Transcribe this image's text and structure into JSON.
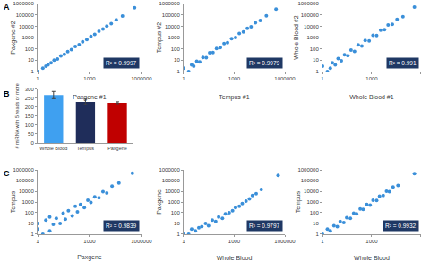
{
  "panel_labels": [
    "A",
    "B",
    "C"
  ],
  "chart_data": [
    {
      "type": "scatter",
      "xlabel": "Paxgene #1",
      "ylabel": "Paxgene #2",
      "color": "#3a8fd9",
      "marker": "circle",
      "log": true,
      "grid": false,
      "xlim": [
        1,
        1000000
      ],
      "ylim": [
        1,
        1000000
      ],
      "xticks": [
        1,
        1000,
        1000000
      ],
      "yticks": [
        1,
        10,
        100,
        1000,
        10000,
        100000,
        1000000
      ],
      "annotations": [
        "R² = 0.9997"
      ],
      "x": [
        1,
        2,
        3,
        4,
        6,
        9,
        14,
        22,
        35,
        55,
        90,
        150,
        250,
        400,
        700,
        1200,
        2000,
        3500,
        6000,
        10000,
        18000,
        35000,
        80000,
        400000
      ],
      "values": [
        1,
        2,
        3,
        4,
        6,
        10,
        13,
        24,
        33,
        58,
        85,
        160,
        240,
        420,
        680,
        1250,
        1900,
        3600,
        5800,
        10500,
        17000,
        36000,
        78000,
        420000
      ]
    },
    {
      "type": "scatter",
      "xlabel": "Tempus #1",
      "ylabel": "Tempus #2",
      "color": "#3a8fd9",
      "marker": "circle",
      "log": true,
      "grid": false,
      "xlim": [
        1,
        1000000
      ],
      "ylim": [
        1,
        1000000
      ],
      "xticks": [
        1,
        1000,
        1000000
      ],
      "yticks": [
        1,
        10,
        100,
        1000,
        10000,
        100000,
        1000000
      ],
      "annotations": [
        "R² = 0.9979"
      ],
      "x": [
        1,
        2,
        3,
        4,
        6,
        9,
        14,
        22,
        35,
        55,
        90,
        150,
        250,
        400,
        700,
        1200,
        2000,
        3500,
        6000,
        10000,
        18000,
        35000,
        80000,
        300000
      ],
      "values": [
        2,
        1,
        4,
        3,
        8,
        7,
        18,
        17,
        45,
        48,
        110,
        130,
        290,
        350,
        800,
        1000,
        2300,
        3100,
        6500,
        9000,
        20000,
        32000,
        85000,
        330000
      ]
    },
    {
      "type": "scatter",
      "xlabel": "Whole Blood #1",
      "ylabel": "Whole Blood #2",
      "color": "#3a8fd9",
      "marker": "circle",
      "log": true,
      "grid": false,
      "xlim": [
        1,
        1000000
      ],
      "ylim": [
        1,
        1000000
      ],
      "xticks": [
        1,
        1000,
        1000000
      ],
      "yticks": [
        1,
        10,
        100,
        1000,
        10000,
        100000,
        1000000
      ],
      "annotations": [
        "R² = 0.991"
      ],
      "x": [
        1,
        2,
        3,
        4,
        6,
        9,
        14,
        22,
        35,
        55,
        90,
        150,
        250,
        400,
        700,
        1200,
        2000,
        3500,
        6000,
        10000,
        18000,
        35000,
        80000,
        400000
      ],
      "values": [
        3,
        1,
        2,
        6,
        4,
        14,
        9,
        30,
        25,
        80,
        60,
        220,
        180,
        550,
        500,
        1600,
        1500,
        4500,
        5000,
        13000,
        15000,
        40000,
        70000,
        500000
      ]
    },
    {
      "type": "bar",
      "categories": [
        "Whole Blood",
        "Tempus",
        "Paxgene"
      ],
      "values": [
        268,
        230,
        225
      ],
      "errors": [
        20,
        15,
        5
      ],
      "colors": [
        "#3fa0f0",
        "#1f2d5a",
        "#c00000"
      ],
      "ylabel": "# miRNA with 5 reads or more",
      "ylim": [
        0,
        300
      ],
      "yticks": [
        0,
        50,
        100,
        150,
        200,
        250,
        300
      ],
      "grid": false
    },
    {
      "type": "scatter",
      "xlabel": "Paxgene",
      "ylabel": "Tempus",
      "color": "#3a8fd9",
      "marker": "circle",
      "log": true,
      "grid": false,
      "xlim": [
        1,
        1000000
      ],
      "ylim": [
        1,
        1000000
      ],
      "xticks": [
        1,
        1000,
        1000000
      ],
      "yticks": [
        1,
        10,
        100,
        1000,
        10000,
        100000,
        1000000
      ],
      "annotations": [
        "R² = 0.9839"
      ],
      "x": [
        1,
        1,
        2,
        3,
        5,
        5,
        8,
        12,
        20,
        30,
        40,
        60,
        100,
        150,
        200,
        300,
        500,
        800,
        1200,
        2000,
        3500,
        6000,
        10000,
        20000,
        50000,
        300000
      ],
      "values": [
        3,
        10,
        1,
        20,
        2,
        40,
        8,
        30,
        10,
        90,
        25,
        150,
        50,
        400,
        120,
        600,
        300,
        1500,
        900,
        3000,
        2500,
        9000,
        7000,
        30000,
        60000,
        500000
      ]
    },
    {
      "type": "scatter",
      "xlabel": "Whole Blood",
      "ylabel": "Paxgene",
      "color": "#3a8fd9",
      "marker": "circle",
      "log": true,
      "grid": false,
      "xlim": [
        1,
        1000000
      ],
      "ylim": [
        1,
        1000000
      ],
      "xticks": [
        1,
        1000,
        1000000
      ],
      "yticks": [
        1,
        10,
        100,
        1000,
        10000,
        100000,
        1000000
      ],
      "annotations": [
        "R² = 0.9797"
      ],
      "x": [
        1,
        2,
        3,
        5,
        8,
        12,
        20,
        30,
        50,
        80,
        120,
        200,
        300,
        500,
        800,
        1200,
        2000,
        3000,
        5000,
        8000,
        12000,
        20000,
        40000,
        400000
      ],
      "values": [
        1,
        1,
        3,
        2,
        4,
        5,
        10,
        6,
        20,
        15,
        40,
        30,
        80,
        100,
        150,
        300,
        400,
        700,
        1200,
        2000,
        4000,
        6000,
        15000,
        300000
      ]
    },
    {
      "type": "scatter",
      "xlabel": "Whole Blood",
      "ylabel": "Tempus",
      "color": "#3a8fd9",
      "marker": "circle",
      "log": true,
      "grid": false,
      "xlim": [
        1,
        1000000
      ],
      "ylim": [
        1,
        1000000
      ],
      "xticks": [
        1,
        1000,
        1000000
      ],
      "yticks": [
        1,
        10,
        100,
        1000,
        10000,
        100000,
        1000000
      ],
      "annotations": [
        "R² = 0.9932"
      ],
      "x": [
        1,
        2,
        3,
        5,
        8,
        12,
        20,
        30,
        50,
        80,
        120,
        200,
        300,
        500,
        800,
        1200,
        2000,
        3000,
        5000,
        8000,
        12000,
        20000,
        40000,
        400000
      ],
      "values": [
        1,
        3,
        2,
        6,
        5,
        15,
        12,
        35,
        30,
        90,
        80,
        230,
        200,
        600,
        500,
        1500,
        1400,
        3500,
        4000,
        10000,
        9000,
        25000,
        35000,
        450000
      ]
    }
  ]
}
